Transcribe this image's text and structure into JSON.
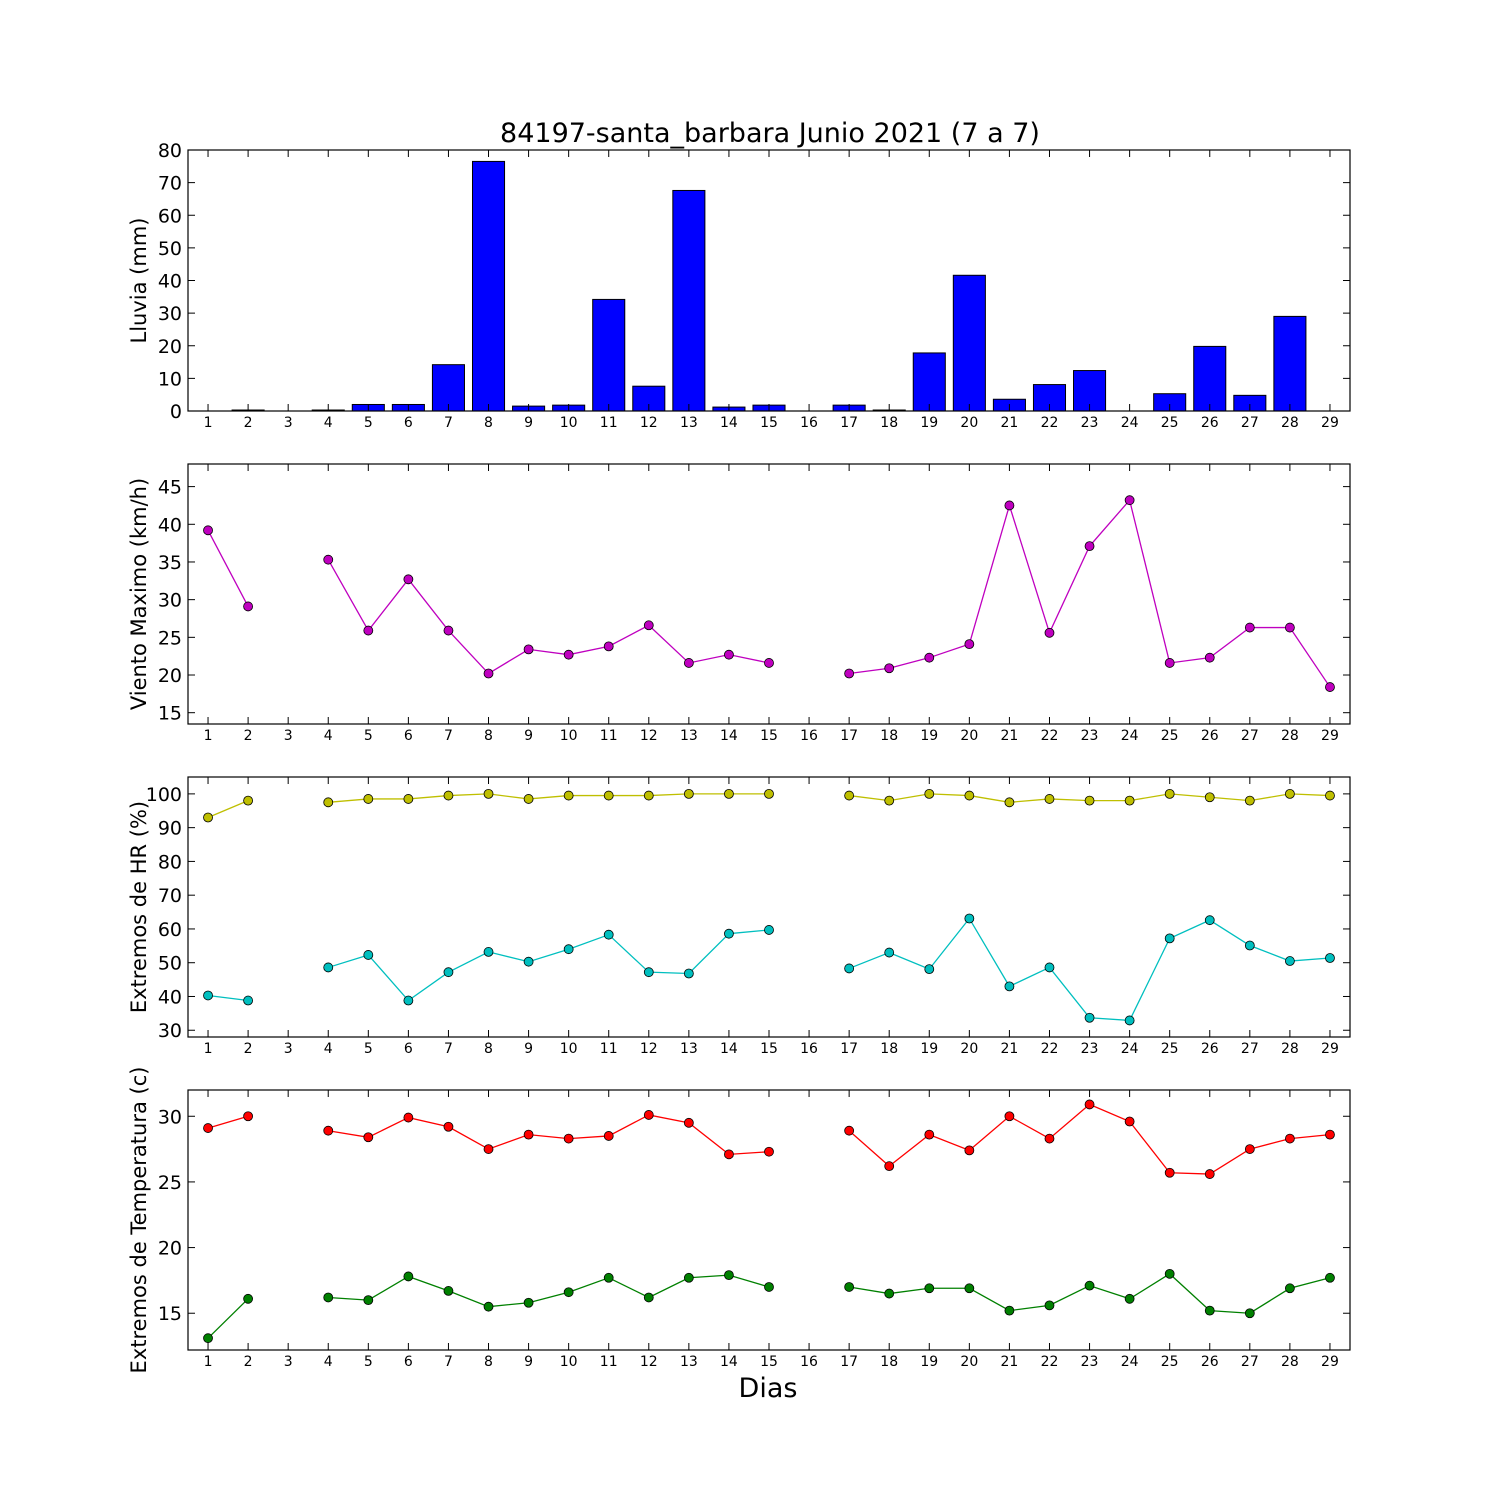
{
  "chart_data": {
    "type": "multi-panel",
    "title": "84197-santa_barbara Junio 2021  (7 a 7)",
    "xlabel": "Dias",
    "x": [
      1,
      2,
      3,
      4,
      5,
      6,
      7,
      8,
      9,
      10,
      11,
      12,
      13,
      14,
      15,
      16,
      17,
      18,
      19,
      20,
      21,
      22,
      23,
      24,
      25,
      26,
      27,
      28,
      29
    ],
    "panels": [
      {
        "type": "bar",
        "ylabel": "Lluvia (mm)",
        "ylim": [
          0,
          80
        ],
        "yticks": [
          0,
          10,
          20,
          30,
          40,
          50,
          60,
          70,
          80
        ],
        "series": [
          {
            "color": "#0000ff",
            "values": [
              0,
              0.3,
              0,
              0.3,
              2,
              2,
              14.2,
              76.5,
              1.5,
              1.8,
              34.2,
              7.6,
              67.6,
              1.2,
              1.8,
              0,
              1.8,
              0.3,
              17.8,
              41.6,
              3.6,
              8.1,
              12.4,
              0,
              5.3,
              19.8,
              4.8,
              29.0,
              0
            ]
          }
        ]
      },
      {
        "type": "line",
        "ylabel": "Viento Maximo (km/h)",
        "ylim": [
          13.5,
          48
        ],
        "yticks": [
          15,
          20,
          25,
          30,
          35,
          40,
          45
        ],
        "series": [
          {
            "color": "#bf00bf",
            "values": [
              39.2,
              29.1,
              null,
              35.3,
              25.9,
              32.7,
              25.9,
              20.2,
              23.4,
              22.7,
              23.8,
              26.6,
              21.6,
              22.7,
              21.6,
              null,
              20.2,
              20.9,
              22.3,
              24.1,
              42.5,
              25.6,
              37.1,
              43.2,
              21.6,
              22.3,
              26.3,
              26.3,
              18.4
            ]
          }
        ]
      },
      {
        "type": "line",
        "ylabel": "Extremos de HR (%)",
        "ylim": [
          28,
          105
        ],
        "yticks": [
          30,
          40,
          50,
          60,
          70,
          80,
          90,
          100
        ],
        "series": [
          {
            "color": "#bfbf00",
            "values": [
              93,
              98,
              null,
              97.5,
              98.5,
              98.5,
              99.5,
              100,
              98.5,
              99.5,
              99.5,
              99.5,
              100,
              100,
              100,
              null,
              99.5,
              98,
              100,
              99.5,
              97.5,
              98.5,
              98,
              98,
              100,
              99,
              98,
              100,
              99.5
            ]
          },
          {
            "color": "#00bfbf",
            "values": [
              40.3,
              38.8,
              null,
              48.6,
              52.3,
              38.8,
              47.2,
              53.2,
              50.3,
              54,
              58.3,
              47.2,
              46.8,
              58.6,
              59.7,
              null,
              48.3,
              53,
              48.1,
              63.1,
              43,
              48.6,
              33.7,
              32.9,
              57.2,
              62.6,
              55.1,
              50.5,
              51.4
            ]
          }
        ]
      },
      {
        "type": "line",
        "ylabel": "Extremos de Temperatura (c)",
        "ylim": [
          12.2,
          32
        ],
        "yticks": [
          15,
          20,
          25,
          30
        ],
        "series": [
          {
            "color": "#ff0000",
            "values": [
              29.1,
              30,
              null,
              28.9,
              28.4,
              29.9,
              29.2,
              27.5,
              28.6,
              28.3,
              28.5,
              30.1,
              29.5,
              27.1,
              27.3,
              null,
              28.9,
              26.2,
              28.6,
              27.4,
              30,
              28.3,
              30.9,
              29.6,
              25.7,
              25.6,
              27.5,
              28.3,
              28.6
            ]
          },
          {
            "color": "#008000",
            "values": [
              13.1,
              16.1,
              null,
              16.2,
              16,
              17.8,
              16.7,
              15.5,
              15.8,
              16.6,
              17.7,
              16.2,
              17.7,
              17.9,
              17,
              null,
              17,
              16.5,
              16.9,
              16.9,
              15.2,
              15.6,
              17.1,
              16.1,
              18,
              15.2,
              15,
              16.9,
              17.7
            ]
          }
        ]
      }
    ]
  }
}
